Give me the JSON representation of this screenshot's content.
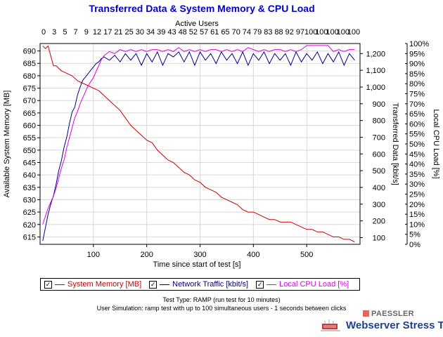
{
  "chart_data": {
    "type": "line",
    "title": "Transferred Data & System Memory & CPU Load",
    "top_axis_label": "Active Users",
    "top_ticks": [
      "0",
      "3",
      "5",
      "7",
      "9",
      "12",
      "17",
      "21",
      "25",
      "30",
      "34",
      "39",
      "43",
      "48",
      "52",
      "57",
      "61",
      "65",
      "70",
      "74",
      "79",
      "83",
      "88",
      "92",
      "97",
      "100",
      "100",
      "100",
      "100",
      "100"
    ],
    "xlabel": "Time since start of test [s]",
    "x_ticks": [
      100,
      200,
      300,
      400,
      500
    ],
    "xlim": [
      0,
      600
    ],
    "left_axis": {
      "label": "Available System Memory [MB]",
      "range": [
        612,
        693
      ],
      "ticks": [
        615,
        620,
        625,
        630,
        635,
        640,
        645,
        650,
        655,
        660,
        665,
        670,
        675,
        680,
        685,
        690
      ]
    },
    "right_axis1": {
      "label": "Transferred Data [kbit/s]",
      "range": [
        60,
        1260
      ],
      "ticks": [
        "100",
        "200",
        "300",
        "400",
        "500",
        "600",
        "700",
        "800",
        "900",
        "1,000",
        "1,100",
        "1,200"
      ],
      "tick_values": [
        100,
        200,
        300,
        400,
        500,
        600,
        700,
        800,
        900,
        1000,
        1100,
        1200
      ]
    },
    "right_axis2": {
      "label": "Local CPU Load [%]",
      "range": [
        0,
        100
      ],
      "ticks": [
        "0%",
        "5%",
        "10%",
        "15%",
        "20%",
        "25%",
        "30%",
        "35%",
        "40%",
        "45%",
        "50%",
        "55%",
        "60%",
        "65%",
        "70%",
        "75%",
        "80%",
        "85%",
        "90%",
        "95%",
        "100%"
      ],
      "tick_values": [
        0,
        5,
        10,
        15,
        20,
        25,
        30,
        35,
        40,
        45,
        50,
        55,
        60,
        65,
        70,
        75,
        80,
        85,
        90,
        95,
        100
      ]
    },
    "grid": true,
    "series": [
      {
        "name": "System Memory [MB]",
        "axis": "left",
        "color": "#cc0000",
        "x": [
          5,
          10,
          15,
          20,
          25,
          30,
          40,
          50,
          60,
          70,
          80,
          90,
          100,
          110,
          120,
          130,
          140,
          150,
          160,
          170,
          180,
          190,
          200,
          210,
          220,
          230,
          240,
          250,
          260,
          270,
          280,
          290,
          300,
          310,
          320,
          330,
          340,
          350,
          360,
          370,
          380,
          390,
          400,
          410,
          420,
          430,
          440,
          450,
          460,
          470,
          480,
          490,
          500,
          510,
          520,
          530,
          540,
          550,
          560,
          570,
          580,
          590
        ],
        "y": [
          692,
          691,
          692,
          688,
          684,
          684,
          682,
          681,
          680,
          678,
          677,
          676,
          675,
          674,
          672,
          670,
          668,
          666,
          663,
          660,
          658,
          656,
          654,
          653,
          650,
          648,
          646,
          645,
          643,
          641,
          640,
          638,
          637,
          635,
          634,
          633,
          631,
          630,
          629,
          628,
          626,
          625,
          625,
          624,
          623,
          622,
          622,
          621,
          621,
          621,
          620,
          619,
          618,
          618,
          617,
          617,
          616,
          615,
          615,
          614,
          614,
          613
        ]
      },
      {
        "name": "Network Traffic [kbit/s]",
        "axis": "right1",
        "color": "#000088",
        "x": [
          5,
          10,
          15,
          20,
          25,
          30,
          35,
          40,
          45,
          50,
          55,
          60,
          65,
          70,
          75,
          80,
          85,
          90,
          95,
          100,
          105,
          110,
          115,
          120,
          130,
          140,
          150,
          160,
          170,
          180,
          190,
          200,
          210,
          220,
          230,
          240,
          250,
          260,
          270,
          280,
          290,
          300,
          310,
          320,
          330,
          340,
          350,
          360,
          370,
          380,
          390,
          400,
          410,
          420,
          430,
          440,
          450,
          460,
          470,
          480,
          490,
          500,
          510,
          520,
          530,
          540,
          550,
          560,
          570,
          580,
          590
        ],
        "y": [
          80,
          160,
          240,
          300,
          350,
          420,
          500,
          560,
          640,
          700,
          780,
          850,
          880,
          950,
          1000,
          1040,
          1060,
          1080,
          1100,
          1120,
          1140,
          1150,
          1170,
          1180,
          1160,
          1190,
          1150,
          1200,
          1160,
          1200,
          1130,
          1200,
          1150,
          1210,
          1130,
          1200,
          1180,
          1210,
          1150,
          1210,
          1130,
          1210,
          1160,
          1200,
          1140,
          1210,
          1160,
          1200,
          1140,
          1210,
          1130,
          1200,
          1160,
          1210,
          1140,
          1200,
          1160,
          1200,
          1130,
          1210,
          1150,
          1200,
          1160,
          1210,
          1140,
          1200,
          1150,
          1210,
          1130,
          1200,
          1160
        ]
      },
      {
        "name": "Local CPU Load [%]",
        "axis": "right2",
        "color": "#dd00dd",
        "x": [
          5,
          10,
          15,
          20,
          25,
          30,
          35,
          40,
          45,
          50,
          55,
          60,
          65,
          70,
          75,
          80,
          85,
          90,
          95,
          100,
          105,
          110,
          115,
          120,
          130,
          140,
          150,
          160,
          170,
          180,
          190,
          200,
          210,
          220,
          230,
          240,
          250,
          260,
          270,
          280,
          290,
          300,
          310,
          320,
          330,
          340,
          350,
          360,
          370,
          380,
          390,
          400,
          410,
          420,
          430,
          440,
          450,
          460,
          470,
          480,
          490,
          500,
          510,
          520,
          530,
          540,
          550,
          560,
          570,
          580,
          590
        ],
        "y": [
          10,
          14,
          18,
          21,
          24,
          28,
          33,
          38,
          42,
          48,
          53,
          58,
          63,
          66,
          70,
          73,
          76,
          79,
          81,
          83,
          86,
          89,
          92,
          94,
          96,
          95,
          97,
          96,
          97,
          96,
          97,
          96,
          97,
          97,
          96,
          97,
          96,
          98,
          96,
          97,
          96,
          97,
          96,
          97,
          97,
          96,
          97,
          96,
          97,
          96,
          98,
          97,
          96,
          97,
          96,
          97,
          97,
          96,
          97,
          96,
          97,
          99,
          99,
          99,
          99,
          99,
          96,
          97,
          96,
          97,
          97
        ]
      }
    ]
  },
  "legend": {
    "items": [
      {
        "label": "System Memory [MB]",
        "color": "#cc0000",
        "checked": "✓"
      },
      {
        "label": "Network Traffic [kbit/s]",
        "color": "#000088",
        "checked": "✓"
      },
      {
        "label": "Local CPU Load [%]",
        "color": "#dd00dd",
        "checked": "✓"
      }
    ]
  },
  "footer": {
    "line1": "Test Type: RAMP (run test for 10 minutes)",
    "line2": "User Simulation: ramp test with up to 100 simultaneous users - 1 seconds between clicks"
  },
  "brand": {
    "company": "PAESSLER",
    "product": "Webserver Stress Tool"
  }
}
